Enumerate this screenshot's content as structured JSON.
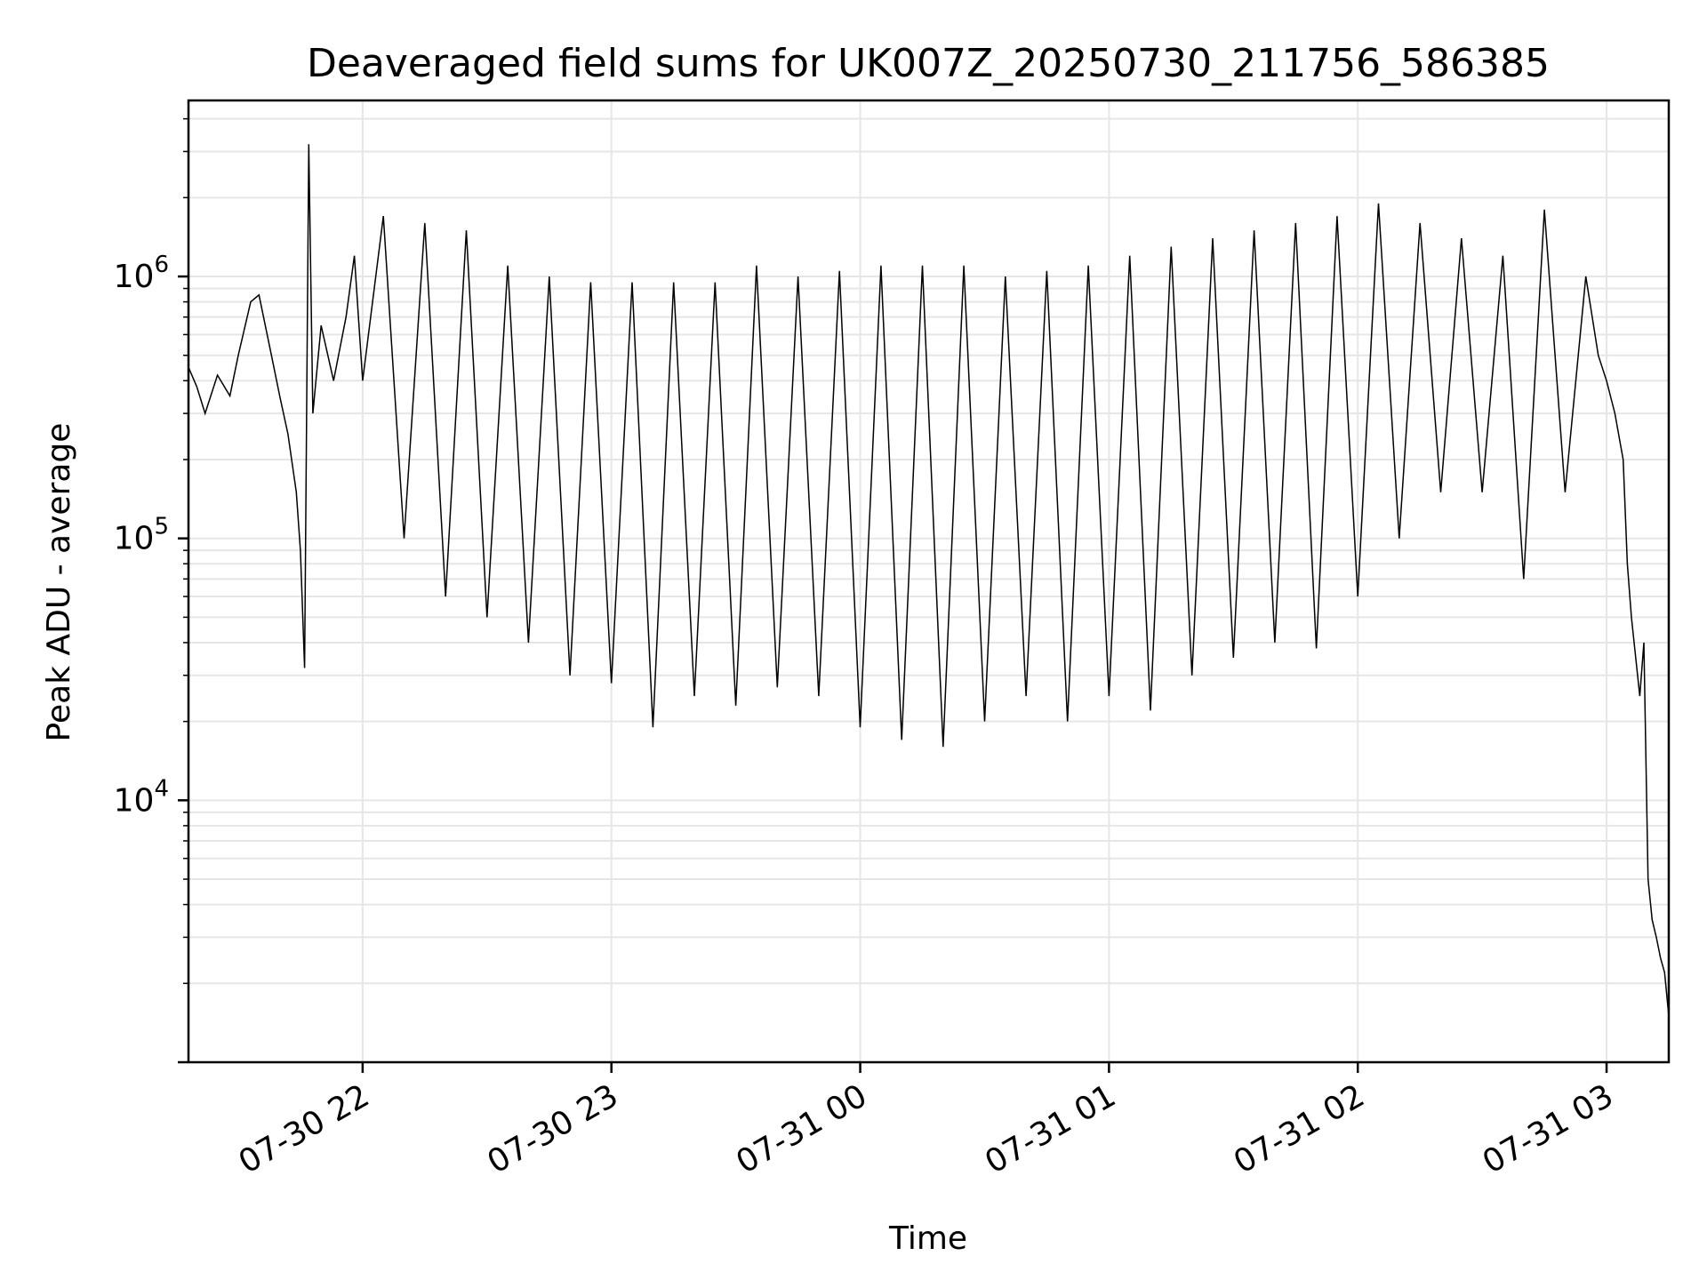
{
  "chart_data": {
    "type": "line",
    "title": "Deaveraged field sums for UK007Z_20250730_211756_586385",
    "xlabel": "Time",
    "ylabel": "Peak ADU - average",
    "x_axis_type": "time",
    "y_scale": "log",
    "xlim": [
      "2025-07-30 21:18",
      "2025-07-31 03:15"
    ],
    "ylim": [
      1000,
      4700000
    ],
    "x_ticks": [
      {
        "value": "2025-07-30 22:00",
        "label": "07-30 22"
      },
      {
        "value": "2025-07-30 23:00",
        "label": "07-30 23"
      },
      {
        "value": "2025-07-31 00:00",
        "label": "07-31 00"
      },
      {
        "value": "2025-07-31 01:00",
        "label": "07-31 01"
      },
      {
        "value": "2025-07-31 02:00",
        "label": "07-31 02"
      },
      {
        "value": "2025-07-31 03:00",
        "label": "07-31 03"
      }
    ],
    "y_ticks": [
      {
        "value": 10000,
        "base": "10",
        "exp": "4"
      },
      {
        "value": 100000,
        "base": "10",
        "exp": "5"
      },
      {
        "value": 1000000,
        "base": "10",
        "exp": "6"
      }
    ],
    "grid": true,
    "line_color": "#000000",
    "grid_color": "#e6e6e6",
    "series": [
      {
        "points": [
          [
            "2025-07-30 21:18",
            450000
          ],
          [
            "2025-07-30 21:20",
            380000
          ],
          [
            "2025-07-30 21:22",
            300000
          ],
          [
            "2025-07-30 21:25",
            420000
          ],
          [
            "2025-07-30 21:28",
            350000
          ],
          [
            "2025-07-30 21:30",
            500000
          ],
          [
            "2025-07-30 21:33",
            800000
          ],
          [
            "2025-07-30 21:35",
            850000
          ],
          [
            "2025-07-30 21:38",
            500000
          ],
          [
            "2025-07-30 21:40",
            350000
          ],
          [
            "2025-07-30 21:42",
            250000
          ],
          [
            "2025-07-30 21:44",
            150000
          ],
          [
            "2025-07-30 21:45",
            90000
          ],
          [
            "2025-07-30 21:46",
            32000
          ],
          [
            "2025-07-30 21:47",
            3200000
          ],
          [
            "2025-07-30 21:48",
            300000
          ],
          [
            "2025-07-30 21:50",
            650000
          ],
          [
            "2025-07-30 21:53",
            400000
          ],
          [
            "2025-07-30 21:56",
            700000
          ],
          [
            "2025-07-30 21:58",
            1200000
          ],
          [
            "2025-07-30 22:00",
            400000
          ],
          [
            "2025-07-30 22:05",
            1700000
          ],
          [
            "2025-07-30 22:10",
            100000
          ],
          [
            "2025-07-30 22:15",
            1600000
          ],
          [
            "2025-07-30 22:20",
            60000
          ],
          [
            "2025-07-30 22:25",
            1500000
          ],
          [
            "2025-07-30 22:30",
            50000
          ],
          [
            "2025-07-30 22:35",
            1100000
          ],
          [
            "2025-07-30 22:40",
            40000
          ],
          [
            "2025-07-30 22:45",
            1000000
          ],
          [
            "2025-07-30 22:50",
            30000
          ],
          [
            "2025-07-30 22:55",
            950000
          ],
          [
            "2025-07-30 23:00",
            28000
          ],
          [
            "2025-07-30 23:05",
            950000
          ],
          [
            "2025-07-30 23:10",
            19000
          ],
          [
            "2025-07-30 23:15",
            950000
          ],
          [
            "2025-07-30 23:20",
            25000
          ],
          [
            "2025-07-30 23:25",
            950000
          ],
          [
            "2025-07-30 23:30",
            23000
          ],
          [
            "2025-07-30 23:35",
            1100000
          ],
          [
            "2025-07-30 23:40",
            27000
          ],
          [
            "2025-07-30 23:45",
            1000000
          ],
          [
            "2025-07-30 23:50",
            25000
          ],
          [
            "2025-07-30 23:55",
            1050000
          ],
          [
            "2025-07-31 00:00",
            19000
          ],
          [
            "2025-07-31 00:05",
            1100000
          ],
          [
            "2025-07-31 00:10",
            17000
          ],
          [
            "2025-07-31 00:15",
            1100000
          ],
          [
            "2025-07-31 00:20",
            16000
          ],
          [
            "2025-07-31 00:25",
            1100000
          ],
          [
            "2025-07-31 00:30",
            20000
          ],
          [
            "2025-07-31 00:35",
            1000000
          ],
          [
            "2025-07-31 00:40",
            25000
          ],
          [
            "2025-07-31 00:45",
            1050000
          ],
          [
            "2025-07-31 00:50",
            20000
          ],
          [
            "2025-07-31 00:55",
            1100000
          ],
          [
            "2025-07-31 01:00",
            25000
          ],
          [
            "2025-07-31 01:05",
            1200000
          ],
          [
            "2025-07-31 01:10",
            22000
          ],
          [
            "2025-07-31 01:15",
            1300000
          ],
          [
            "2025-07-31 01:20",
            30000
          ],
          [
            "2025-07-31 01:25",
            1400000
          ],
          [
            "2025-07-31 01:30",
            35000
          ],
          [
            "2025-07-31 01:35",
            1500000
          ],
          [
            "2025-07-31 01:40",
            40000
          ],
          [
            "2025-07-31 01:45",
            1600000
          ],
          [
            "2025-07-31 01:50",
            38000
          ],
          [
            "2025-07-31 01:55",
            1700000
          ],
          [
            "2025-07-31 02:00",
            60000
          ],
          [
            "2025-07-31 02:05",
            1900000
          ],
          [
            "2025-07-31 02:10",
            100000
          ],
          [
            "2025-07-31 02:15",
            1600000
          ],
          [
            "2025-07-31 02:20",
            150000
          ],
          [
            "2025-07-31 02:25",
            1400000
          ],
          [
            "2025-07-31 02:30",
            150000
          ],
          [
            "2025-07-31 02:35",
            1200000
          ],
          [
            "2025-07-31 02:40",
            70000
          ],
          [
            "2025-07-31 02:45",
            1800000
          ],
          [
            "2025-07-31 02:50",
            150000
          ],
          [
            "2025-07-31 02:55",
            1000000
          ],
          [
            "2025-07-31 02:58",
            500000
          ],
          [
            "2025-07-31 03:00",
            400000
          ],
          [
            "2025-07-31 03:02",
            300000
          ],
          [
            "2025-07-31 03:04",
            200000
          ],
          [
            "2025-07-31 03:05",
            80000
          ],
          [
            "2025-07-31 03:06",
            50000
          ],
          [
            "2025-07-31 03:08",
            25000
          ],
          [
            "2025-07-31 03:09",
            40000
          ],
          [
            "2025-07-31 03:10",
            5000
          ],
          [
            "2025-07-31 03:11",
            3500
          ],
          [
            "2025-07-31 03:12",
            3000
          ],
          [
            "2025-07-31 03:13",
            2500
          ],
          [
            "2025-07-31 03:14",
            2200
          ],
          [
            "2025-07-31 03:15",
            1500
          ]
        ]
      }
    ]
  }
}
